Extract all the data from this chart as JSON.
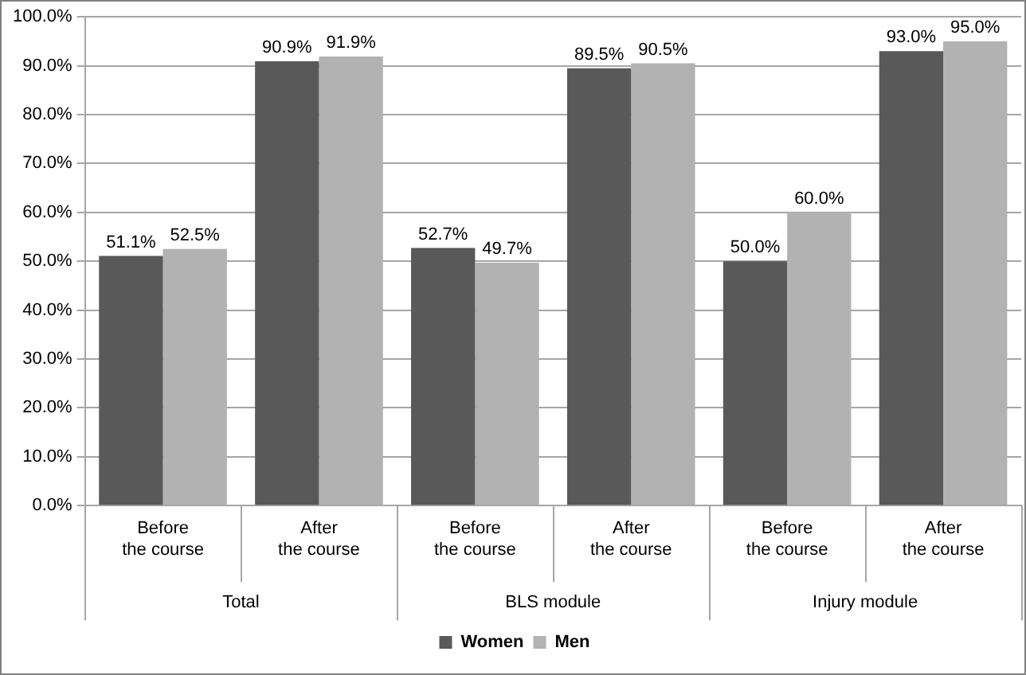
{
  "chart_data": {
    "type": "bar",
    "categories": [
      "Before the course",
      "After the course",
      "Before the course",
      "After the course",
      "Before the course",
      "After the course"
    ],
    "annotations": [
      "Total",
      "BLS module",
      "Injury module"
    ],
    "series": [
      {
        "name": "Women",
        "color": "#595959",
        "values": [
          51.1,
          90.9,
          52.7,
          89.5,
          50.0,
          93.0
        ],
        "value_labels": [
          "51.1%",
          "90.9%",
          "52.7%",
          "89.5%",
          "50.0%",
          "93.0%"
        ]
      },
      {
        "name": "Men",
        "color": "#b2b2b2",
        "values": [
          52.5,
          91.9,
          49.7,
          90.5,
          60.0,
          95.0
        ],
        "value_labels": [
          "52.5%",
          "91.9%",
          "49.7%",
          "90.5%",
          "60.0%",
          "95.0%"
        ]
      }
    ],
    "ylim": [
      0,
      100
    ],
    "yticks": [
      {
        "value": 0,
        "label": "0.0%"
      },
      {
        "value": 10,
        "label": "10.0%"
      },
      {
        "value": 20,
        "label": "20.0%"
      },
      {
        "value": 30,
        "label": "30.0%"
      },
      {
        "value": 40,
        "label": "40.0%"
      },
      {
        "value": 50,
        "label": "50.0%"
      },
      {
        "value": 60,
        "label": "60.0%"
      },
      {
        "value": 70,
        "label": "70.0%"
      },
      {
        "value": 80,
        "label": "80.0%"
      },
      {
        "value": 90,
        "label": "90.0%"
      },
      {
        "value": 100,
        "label": "100.0%"
      }
    ],
    "grid": "y",
    "legend": "bottom"
  }
}
